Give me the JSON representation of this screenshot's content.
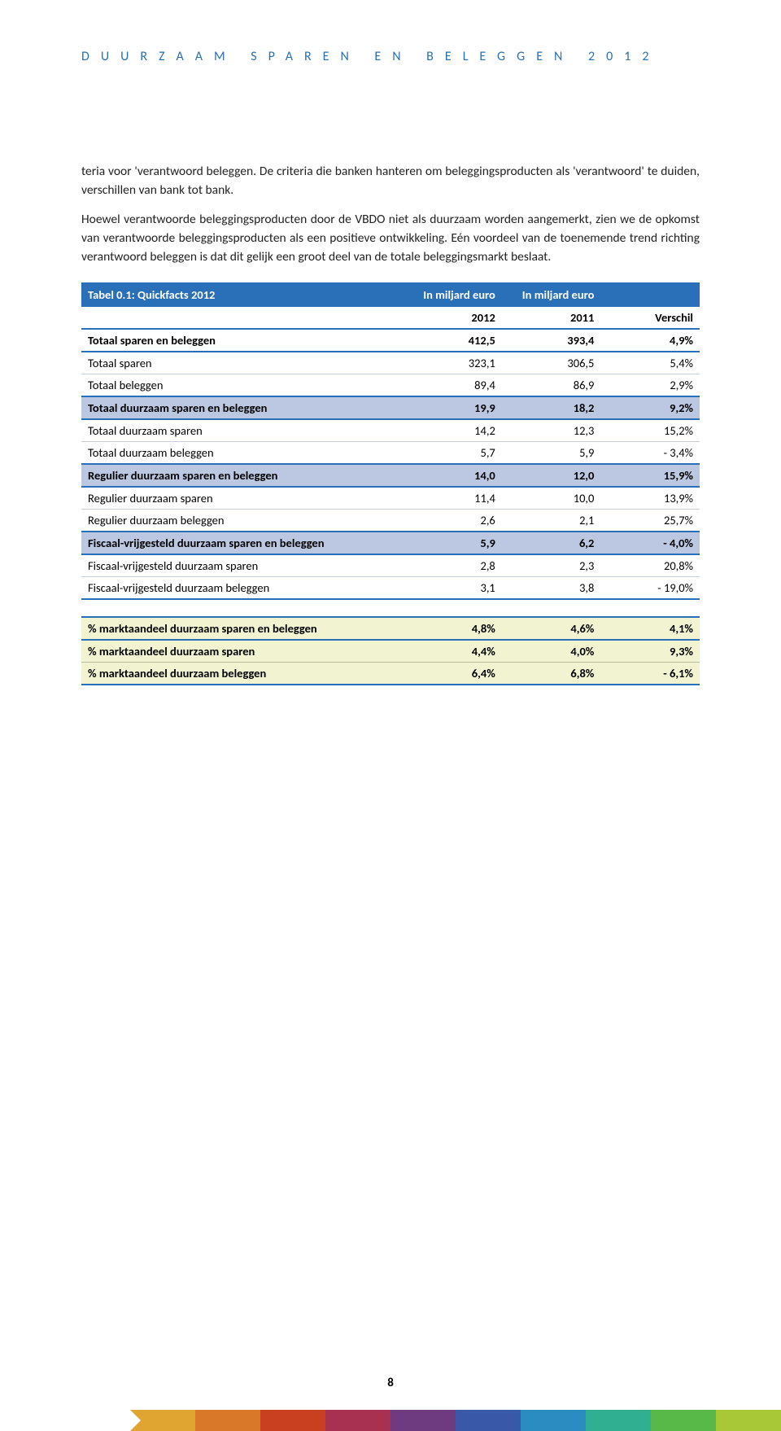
{
  "header": {
    "title": "DUURZAAM SPAREN EN BELEGGEN 2012"
  },
  "para1": "teria voor 'verantwoord beleggen. De criteria die banken hanteren om beleggingsproducten als 'verantwoord' te duiden, verschillen van bank tot bank.",
  "para2": "Hoewel verantwoorde beleggingsproducten door de VBDO niet als duurzaam worden aangemerkt, zien we de opkomst van verantwoorde beleggingsproducten als een positieve ontwikkeling. Eén voordeel van de toenemende trend richting verantwoord beleggen is dat dit gelijk een groot deel van de totale beleggingsmarkt beslaat.",
  "table": {
    "header": {
      "c0": "Tabel 0.1: Quickfacts 2012",
      "c1": "In miljard euro",
      "c2": "In miljard euro",
      "c3": ""
    },
    "sub": {
      "c1": "2012",
      "c2": "2011",
      "c3": "Verschil"
    },
    "rows": [
      {
        "style": "bold-row-blue",
        "c0": "Totaal sparen en beleggen",
        "c1": "412,5",
        "c2": "393,4",
        "c3": "4,9%"
      },
      {
        "style": "plain",
        "c0": "Totaal sparen",
        "c1": "323,1",
        "c2": "306,5",
        "c3": "5,4%"
      },
      {
        "style": "plain-last",
        "c0": "Totaal beleggen",
        "c1": "89,4",
        "c2": "86,9",
        "c3": "2,9%"
      },
      {
        "style": "bold-row-blue shade-blue",
        "c0": "Totaal duurzaam sparen en beleggen",
        "c1": "19,9",
        "c2": "18,2",
        "c3": "9,2%"
      },
      {
        "style": "plain",
        "c0": "Totaal duurzaam sparen",
        "c1": "14,2",
        "c2": "12,3",
        "c3": "15,2%"
      },
      {
        "style": "plain-last",
        "c0": "Totaal duurzaam beleggen",
        "c1": "5,7",
        "c2": "5,9",
        "c3": "-  3,4%"
      },
      {
        "style": "bold-row-blue shade-blue",
        "c0": "Regulier duurzaam sparen en beleggen",
        "c1": "14,0",
        "c2": "12,0",
        "c3": "15,9%"
      },
      {
        "style": "plain",
        "c0": "Regulier duurzaam sparen",
        "c1": "11,4",
        "c2": "10,0",
        "c3": "13,9%"
      },
      {
        "style": "plain-last",
        "c0": "Regulier duurzaam beleggen",
        "c1": "2,6",
        "c2": "2,1",
        "c3": "25,7%"
      },
      {
        "style": "bold-row-blue shade-blue",
        "c0": "Fiscaal-vrijgesteld duurzaam sparen en beleggen",
        "c1": "5,9",
        "c2": "6,2",
        "c3": "-  4,0%"
      },
      {
        "style": "plain",
        "c0": "Fiscaal-vrijgesteld duurzaam sparen",
        "c1": "2,8",
        "c2": "2,3",
        "c3": "20,8%"
      },
      {
        "style": "plain-last",
        "c0": "Fiscaal-vrijgesteld duurzaam beleggen",
        "c1": "3,1",
        "c2": "3,8",
        "c3": "- 19,0%"
      }
    ],
    "green": [
      {
        "style": "green-row",
        "c0": "% marktaandeel duurzaam sparen en beleggen",
        "c1": "4,8%",
        "c2": "4,6%",
        "c3": "4,1%"
      },
      {
        "style": "green-row",
        "c0": "% marktaandeel duurzaam sparen",
        "c1": "4,4%",
        "c2": "4,0%",
        "c3": "9,3%"
      },
      {
        "style": "green-row-last",
        "c0": "% marktaandeel duurzaam beleggen",
        "c1": "6,4%",
        "c2": "6,8%",
        "c3": "-  6,1%"
      }
    ]
  },
  "page_num": "8",
  "footer_colors": [
    "#e0a430",
    "#d87828",
    "#c94020",
    "#a83050",
    "#6e3a80",
    "#3a58a8",
    "#2a8cc0",
    "#30b090",
    "#58b848",
    "#a8c838"
  ]
}
